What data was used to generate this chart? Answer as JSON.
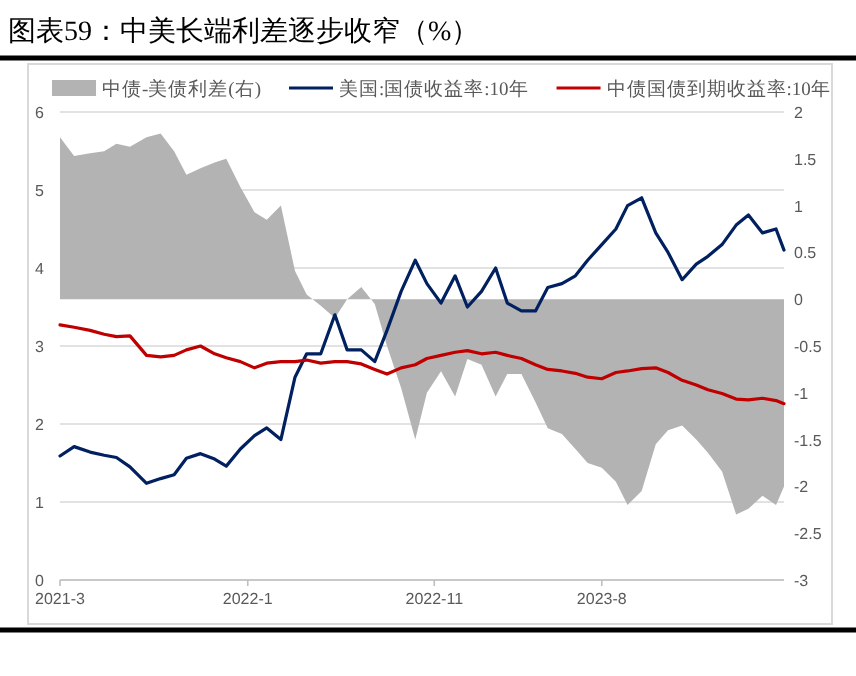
{
  "chart_data": {
    "type": "line",
    "title": "图表59：中美长端利差逐步收窄（%）",
    "x": [
      "2021-03-01",
      "2021-03-24",
      "2021-04-19",
      "2021-05-12",
      "2021-06-01",
      "2021-06-23",
      "2021-07-20",
      "2021-08-12",
      "2021-09-03",
      "2021-09-23",
      "2021-10-16",
      "2021-11-08",
      "2021-11-27",
      "2021-12-20",
      "2022-01-12",
      "2022-02-01",
      "2022-02-24",
      "2022-03-19",
      "2022-04-07",
      "2022-04-30",
      "2022-05-23",
      "2022-06-12",
      "2022-07-05",
      "2022-07-27",
      "2022-08-16",
      "2022-09-08",
      "2022-10-01",
      "2022-10-20",
      "2022-11-12",
      "2022-12-05",
      "2022-12-25",
      "2023-01-17",
      "2023-02-09",
      "2023-02-28",
      "2023-03-23",
      "2023-04-15",
      "2023-05-05",
      "2023-05-28",
      "2023-06-19",
      "2023-07-09",
      "2023-08-01",
      "2023-08-24",
      "2023-09-12",
      "2023-10-05",
      "2023-10-28",
      "2023-11-17",
      "2023-12-10",
      "2024-01-02",
      "2024-01-21",
      "2024-02-13",
      "2024-03-07",
      "2024-03-27",
      "2024-04-19",
      "2024-05-11",
      "2024-05-24"
    ],
    "series": [
      {
        "name": "中债-美债利差(右)",
        "type": "area",
        "axis": "y2",
        "color": "#b3b3b3",
        "values": [
          1.73,
          1.53,
          1.56,
          1.58,
          1.66,
          1.63,
          1.73,
          1.77,
          1.58,
          1.33,
          1.4,
          1.46,
          1.5,
          1.2,
          0.93,
          0.85,
          1.0,
          0.3,
          0.05,
          -0.07,
          -0.2,
          0.0,
          0.13,
          -0.05,
          -0.5,
          -0.95,
          -1.5,
          -1.0,
          -0.77,
          -1.04,
          -0.64,
          -0.7,
          -1.04,
          -0.8,
          -0.8,
          -1.1,
          -1.38,
          -1.44,
          -1.6,
          -1.75,
          -1.8,
          -1.95,
          -2.2,
          -2.05,
          -1.55,
          -1.4,
          -1.35,
          -1.5,
          -1.64,
          -1.84,
          -2.3,
          -2.24,
          -2.1,
          -2.2,
          -2.0
        ]
      },
      {
        "name": "美国:国债收益率:10年",
        "color": "#002060",
        "values": [
          1.59,
          1.71,
          1.64,
          1.6,
          1.57,
          1.45,
          1.24,
          1.3,
          1.35,
          1.56,
          1.62,
          1.55,
          1.46,
          1.68,
          1.85,
          1.95,
          1.8,
          2.6,
          2.9,
          2.9,
          3.4,
          2.95,
          2.95,
          2.8,
          3.2,
          3.7,
          4.1,
          3.8,
          3.55,
          3.9,
          3.5,
          3.7,
          4.0,
          3.55,
          3.45,
          3.45,
          3.75,
          3.8,
          3.9,
          4.1,
          4.3,
          4.5,
          4.8,
          4.9,
          4.45,
          4.2,
          3.85,
          4.05,
          4.15,
          4.3,
          4.55,
          4.68,
          4.45,
          4.5,
          4.23
        ]
      },
      {
        "name": "中债国债到期收益率:10年",
        "color": "#c00000",
        "values": [
          3.27,
          3.24,
          3.2,
          3.15,
          3.12,
          3.13,
          2.88,
          2.86,
          2.88,
          2.95,
          3.0,
          2.9,
          2.85,
          2.8,
          2.72,
          2.78,
          2.8,
          2.8,
          2.82,
          2.78,
          2.8,
          2.8,
          2.77,
          2.7,
          2.64,
          2.72,
          2.76,
          2.84,
          2.88,
          2.92,
          2.94,
          2.9,
          2.92,
          2.88,
          2.84,
          2.76,
          2.7,
          2.68,
          2.65,
          2.6,
          2.58,
          2.66,
          2.68,
          2.71,
          2.72,
          2.66,
          2.56,
          2.5,
          2.44,
          2.39,
          2.32,
          2.31,
          2.33,
          2.3,
          2.26
        ]
      }
    ],
    "xlim": [
      "2021-03-01",
      "2024-05-24"
    ],
    "xticks": [
      {
        "value": "2021-03-01",
        "label": "2021-3"
      },
      {
        "value": "2022-01-01",
        "label": "2022-1"
      },
      {
        "value": "2022-11-01",
        "label": "2022-11"
      },
      {
        "value": "2023-08-01",
        "label": "2023-8"
      }
    ],
    "ylim": [
      0,
      6
    ],
    "yticks": [
      0,
      1,
      2,
      3,
      4,
      5,
      6
    ],
    "y2lim": [
      -3,
      2
    ],
    "y2ticks": [
      -3,
      -2.5,
      -2,
      -1.5,
      -1,
      -0.5,
      0,
      0.5,
      1,
      1.5,
      2
    ],
    "grid": "y",
    "legend": "top"
  }
}
